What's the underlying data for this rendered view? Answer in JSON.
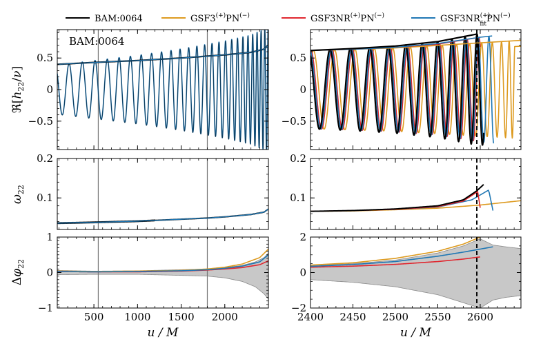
{
  "legend": [
    {
      "label": "BAM:0064",
      "color": "#000000"
    },
    {
      "label": "GSF3$^{(+)}$PN$^{(-)}$",
      "color": "#dd9a1f"
    },
    {
      "label": "GSF3NR$^{(+)}$PN$^{(-)}$",
      "color": "#e0262e"
    },
    {
      "label": "GSF3NR$^{(+)}_{\\rm fit}$PN$^{(-)}$",
      "color": "#1f77b4"
    }
  ],
  "colors": {
    "bam": "#000000",
    "gsf3": "#dd9a1f",
    "gsf3nr": "#e0262e",
    "gsf3nrfit": "#1f77b4",
    "uncertainty": "#c8c8c8",
    "vline": "#777777"
  },
  "chart_data": [
    {
      "id": "real-h22-full",
      "type": "line",
      "annotation": "BAM:0064",
      "ylabel": "ℜ[h22/ν]",
      "xlim": [
        80,
        2500
      ],
      "ylim": [
        -0.95,
        0.95
      ],
      "yticks": [
        -0.5,
        0,
        0.5
      ],
      "xticks": [
        500,
        1000,
        1500,
        2000
      ],
      "xticklabels_visible": false,
      "vlines": [
        550,
        1800
      ],
      "envelope_upper": {
        "x": [
          80,
          500,
          1000,
          1500,
          2000,
          2300,
          2450,
          2500
        ],
        "y": [
          0.4,
          0.43,
          0.46,
          0.5,
          0.55,
          0.59,
          0.64,
          0.7
        ]
      },
      "oscillation_cycles_visible": 17,
      "trough": [
        -0.42,
        -0.65
      ]
    },
    {
      "id": "real-h22-zoom",
      "type": "line",
      "ylabel": "",
      "xlim": [
        2400,
        2648
      ],
      "ylim": [
        -0.95,
        0.95
      ],
      "yticks": [
        -0.5,
        0,
        0.5
      ],
      "xticks": [
        2400,
        2450,
        2500,
        2550,
        2600
      ],
      "xticklabels_visible": false,
      "merger_line": 2596,
      "series": [
        {
          "name": "BAM:0064",
          "x": [
            2400,
            2450,
            2500,
            2550,
            2596
          ],
          "envelope": [
            0.62,
            0.65,
            0.69,
            0.76,
            0.88
          ],
          "peaks": [
            2485,
            2526
          ],
          "troughs": [
            2436,
            2566
          ]
        },
        {
          "name": "GSF3$^{(+)}$PN$^{(-)}$",
          "x": [
            2400,
            2450,
            2500,
            2550,
            2600,
            2648
          ],
          "envelope": [
            0.62,
            0.64,
            0.66,
            0.7,
            0.74,
            0.78
          ]
        },
        {
          "name": "GSF3NR$^{(+)}$PN$^{(-)}$",
          "x": [
            2400,
            2450,
            2500,
            2550,
            2600
          ],
          "envelope": [
            0.62,
            0.64,
            0.67,
            0.72,
            0.83
          ]
        },
        {
          "name": "GSF3NR$^{(+)}_{\\rm fit}$PN$^{(-)}$",
          "x": [
            2400,
            2450,
            2500,
            2550,
            2600,
            2614
          ],
          "envelope": [
            0.62,
            0.64,
            0.67,
            0.73,
            0.83,
            0.85
          ]
        }
      ]
    },
    {
      "id": "omega22-full",
      "type": "line",
      "ylabel": "ω22",
      "xlim": [
        80,
        2500
      ],
      "ylim": [
        0.02,
        0.2
      ],
      "yticks": [
        0.1,
        0.2
      ],
      "xticks": [
        500,
        1000,
        1500,
        2000
      ],
      "xticklabels_visible": false,
      "vlines": [
        550,
        1800
      ],
      "series": [
        {
          "name": "BAM:0064",
          "x": [
            80,
            500,
            1000,
            1500,
            1800,
            2000,
            2300,
            2450,
            2500
          ],
          "y": [
            0.036,
            0.038,
            0.041,
            0.046,
            0.049,
            0.052,
            0.058,
            0.064,
            0.072
          ]
        }
      ]
    },
    {
      "id": "omega22-zoom",
      "type": "line",
      "ylabel": "",
      "xlim": [
        2400,
        2648
      ],
      "ylim": [
        0.02,
        0.2
      ],
      "yticks": [
        0.1,
        0.2
      ],
      "xticks": [
        2400,
        2450,
        2500,
        2550,
        2600
      ],
      "xticklabels_visible": false,
      "merger_line": 2596,
      "series": [
        {
          "name": "BAM:0064",
          "x": [
            2400,
            2450,
            2500,
            2550,
            2580,
            2596,
            2604
          ],
          "y": [
            0.066,
            0.068,
            0.072,
            0.08,
            0.095,
            0.118,
            0.134
          ]
        },
        {
          "name": "GSF3$^{(+)}$PN$^{(-)}$",
          "x": [
            2400,
            2450,
            2500,
            2550,
            2600,
            2648
          ],
          "y": [
            0.066,
            0.067,
            0.07,
            0.074,
            0.082,
            0.093
          ]
        },
        {
          "name": "GSF3NR$^{(+)}$PN$^{(-)}$",
          "x": [
            2400,
            2450,
            2500,
            2550,
            2580,
            2597,
            2600
          ],
          "y": [
            0.066,
            0.068,
            0.071,
            0.078,
            0.092,
            0.116,
            0.075
          ]
        },
        {
          "name": "GSF3NR$^{(+)}_{\\rm fit}$PN$^{(-)}$",
          "x": [
            2400,
            2450,
            2500,
            2550,
            2590,
            2610,
            2615
          ],
          "y": [
            0.066,
            0.068,
            0.071,
            0.077,
            0.095,
            0.12,
            0.068
          ]
        }
      ]
    },
    {
      "id": "dphi22-full",
      "type": "line",
      "ylabel": "Δφ22",
      "xlabel": "u / M",
      "xlim": [
        80,
        2500
      ],
      "ylim": [
        -1,
        1
      ],
      "yticks": [
        -1,
        0,
        1
      ],
      "xticks": [
        500,
        1000,
        1500,
        2000
      ],
      "vlines": [
        550,
        1800
      ],
      "band": {
        "x": [
          80,
          500,
          1000,
          1500,
          1800,
          2000,
          2200,
          2350,
          2450,
          2500
        ],
        "upper": [
          0.06,
          0.04,
          0.05,
          0.08,
          0.1,
          0.14,
          0.2,
          0.3,
          0.42,
          0.55
        ],
        "lower": [
          -0.06,
          -0.05,
          -0.05,
          -0.08,
          -0.1,
          -0.15,
          -0.25,
          -0.4,
          -0.6,
          -0.75
        ]
      },
      "series": [
        {
          "name": "GSF3$^{(+)}$PN$^{(-)}$",
          "x": [
            80,
            500,
            1000,
            1500,
            1800,
            2000,
            2200,
            2400,
            2500
          ],
          "y": [
            0.04,
            0.03,
            0.04,
            0.06,
            0.1,
            0.15,
            0.24,
            0.42,
            0.66
          ]
        },
        {
          "name": "GSF3NR$^{(+)}$PN$^{(-)}$",
          "x": [
            80,
            500,
            1000,
            1500,
            1800,
            2000,
            2200,
            2400,
            2500
          ],
          "y": [
            0.03,
            0.02,
            0.02,
            0.04,
            0.07,
            0.1,
            0.14,
            0.22,
            0.33
          ]
        },
        {
          "name": "GSF3NR$^{(+)}_{\\rm fit}$PN$^{(-)}$",
          "x": [
            80,
            500,
            1000,
            1500,
            1800,
            2000,
            2200,
            2400,
            2500
          ],
          "y": [
            0.03,
            0.02,
            0.03,
            0.05,
            0.08,
            0.12,
            0.18,
            0.3,
            0.5
          ]
        }
      ]
    },
    {
      "id": "dphi22-zoom",
      "type": "line",
      "ylabel": "",
      "xlabel": "u / M",
      "xlim": [
        2400,
        2648
      ],
      "ylim": [
        -2,
        2
      ],
      "yticks": [
        -2,
        0,
        2
      ],
      "xticks": [
        2400,
        2450,
        2500,
        2550,
        2600
      ],
      "merger_line": 2596,
      "band": {
        "x": [
          2400,
          2450,
          2500,
          2550,
          2580,
          2600,
          2615,
          2630,
          2648
        ],
        "upper": [
          0.4,
          0.5,
          0.7,
          1.1,
          1.5,
          1.9,
          1.55,
          1.45,
          1.35
        ],
        "lower": [
          -0.4,
          -0.55,
          -0.8,
          -1.25,
          -1.7,
          -2.0,
          -1.55,
          -1.4,
          -1.3
        ]
      },
      "series": [
        {
          "name": "GSF3$^{(+)}$PN$^{(-)}$",
          "x": [
            2400,
            2450,
            2500,
            2550,
            2580,
            2600
          ],
          "y": [
            0.42,
            0.55,
            0.8,
            1.2,
            1.6,
            2.0
          ]
        },
        {
          "name": "GSF3NR$^{(+)}$PN$^{(-)}$",
          "x": [
            2400,
            2450,
            2500,
            2550,
            2580,
            2600
          ],
          "y": [
            0.3,
            0.36,
            0.46,
            0.62,
            0.76,
            0.88
          ]
        },
        {
          "name": "GSF3NR$^{(+)}_{\\rm fit}$PN$^{(-)}$",
          "x": [
            2400,
            2450,
            2500,
            2550,
            2580,
            2615
          ],
          "y": [
            0.35,
            0.45,
            0.62,
            0.92,
            1.15,
            1.45
          ]
        }
      ]
    }
  ]
}
